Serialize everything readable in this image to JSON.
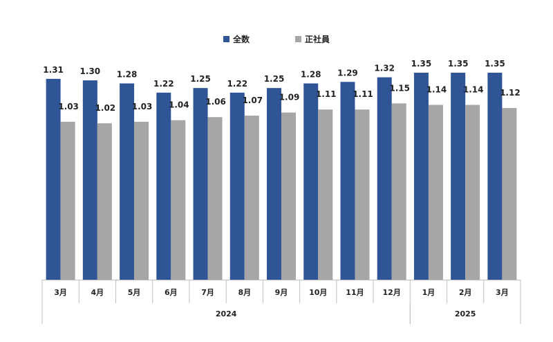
{
  "chart_data": {
    "type": "bar",
    "categories": [
      "3月",
      "4月",
      "5月",
      "6月",
      "7月",
      "8月",
      "9月",
      "10月",
      "11月",
      "12月",
      "1月",
      "2月",
      "3月"
    ],
    "year_groups": [
      {
        "label": "2024",
        "span": 10
      },
      {
        "label": "2025",
        "span": 3
      }
    ],
    "series": [
      {
        "name": "全数",
        "color": "#2f5597",
        "values": [
          1.31,
          1.3,
          1.28,
          1.22,
          1.25,
          1.22,
          1.25,
          1.28,
          1.29,
          1.32,
          1.35,
          1.35,
          1.35
        ],
        "labels": [
          "1.31",
          "1.30",
          "1.28",
          "1.22",
          "1.25",
          "1.22",
          "1.25",
          "1.28",
          "1.29",
          "1.32",
          "1.35",
          "1.35",
          "1.35"
        ]
      },
      {
        "name": "正社員",
        "color": "#a6a6a6",
        "values": [
          1.03,
          1.02,
          1.03,
          1.04,
          1.06,
          1.07,
          1.09,
          1.11,
          1.11,
          1.15,
          1.14,
          1.14,
          1.12
        ],
        "labels": [
          "1.03",
          "1.02",
          "1.03",
          "1.04",
          "1.06",
          "1.07",
          "1.09",
          "1.11",
          "1.11",
          "1.15",
          "1.14",
          "1.14",
          "1.12"
        ]
      }
    ],
    "ylim": [
      0,
      1.35
    ],
    "grid": false,
    "legend_position": "top-center"
  }
}
